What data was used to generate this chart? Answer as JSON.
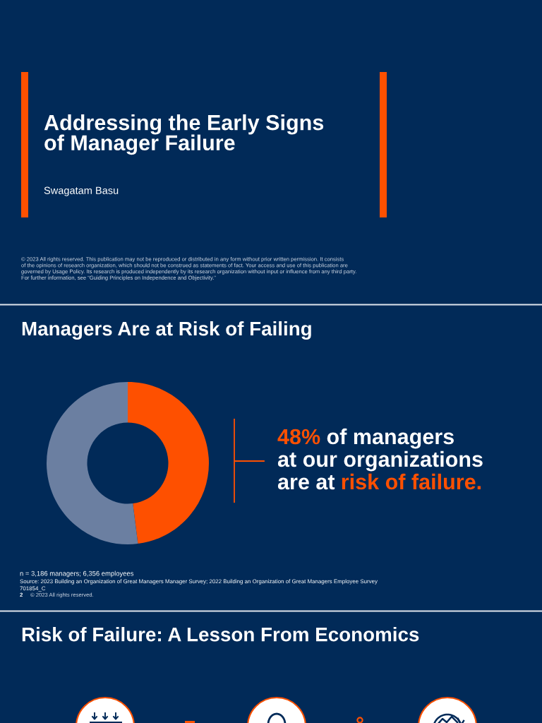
{
  "chart_data": {
    "type": "donut",
    "title": "Managers Are at Risk of Failing",
    "categories": [
      null,
      null
    ],
    "values": [
      48,
      52
    ],
    "colors": [
      "#fe5000",
      "#6b7fa1"
    ],
    "annotations": [
      "Addressing the Early Signs\nof Manager Failure",
      "Swagatam Basu",
      "© 2023 All rights reserved. This publication may not be reproduced or distributed in any form without prior written permission. It consists\nof the opinions of research organization, which should not be construed as statements of fact. Your access and use of this publication are\ngoverned by Usage Policy. Its research is produced independently by its research organization without input or influence from any third party.\nFor further information, see “Guiding Principles on Independence and Objectivity.”",
      "48%",
      "of managers",
      "at our organizations",
      "are at",
      "risk of failure.",
      "n = 3,186 managers; 6,356 employees",
      "Source: 2023 Building an Organization of Great Managers Manager Survey; 2022 Building an Organization of Great Managers Employee Survey",
      "701854_C",
      "2",
      "© 2023 All rights reserved.",
      "Risk of Failure: A Lesson From Economics"
    ]
  }
}
